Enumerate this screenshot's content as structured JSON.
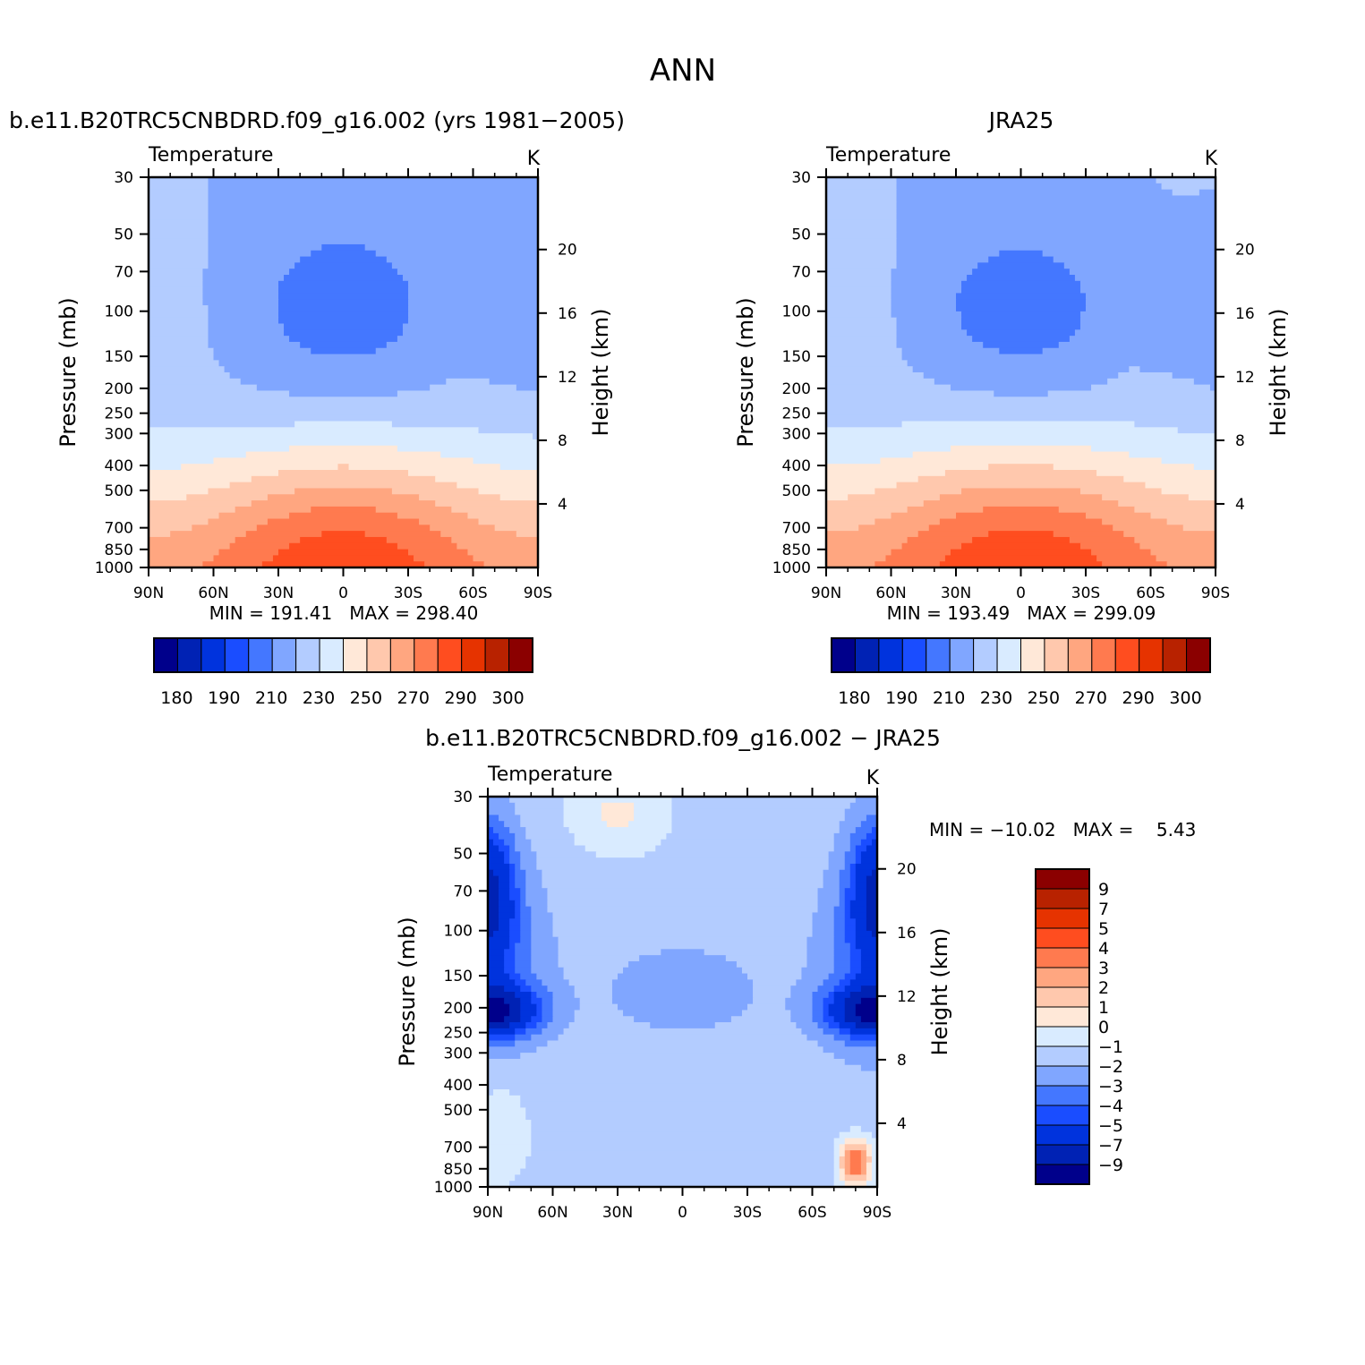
{
  "figure_title": "ANN",
  "level_colors": [
    "#00008b",
    "#0022b4",
    "#0033dd",
    "#1a4dff",
    "#4477ff",
    "#80a6ff",
    "#b3ccff",
    "#d9ebff",
    "#ffe8d8",
    "#ffc8ad",
    "#ffa680",
    "#ff7a4f",
    "#ff4d1f",
    "#e63300",
    "#b82200",
    "#8b0000"
  ],
  "chart_data": [
    {
      "id": "model",
      "type": "contour",
      "panel_title": "b.e11.B20TRC5CNBDRD.f09_g16.002 (yrs 1981−2005)",
      "left_label": "Temperature",
      "right_label": "K",
      "xlabel": "",
      "ylabel": "Pressure (mb)",
      "ylabel_right": "Height (km)",
      "x_ticks": [
        "90N",
        "60N",
        "30N",
        "0",
        "30S",
        "60S",
        "90S"
      ],
      "x_values": [
        90,
        60,
        30,
        0,
        -30,
        -60,
        -90
      ],
      "xlim": [
        90,
        -90
      ],
      "y_ticks": [
        30,
        50,
        70,
        100,
        150,
        200,
        250,
        300,
        400,
        500,
        700,
        850,
        1000
      ],
      "ylim": [
        30,
        1000
      ],
      "yscale": "log",
      "y_right_ticks": [
        20,
        16,
        12,
        8,
        4
      ],
      "stats": "MIN = 191.41   MAX = 298.40",
      "min": 191.41,
      "max": 298.4,
      "colorbar": {
        "orientation": "horizontal",
        "levels": [
          180,
          185,
          190,
          200,
          210,
          220,
          230,
          240,
          250,
          260,
          270,
          280,
          290,
          295,
          300
        ],
        "labels": [
          "180",
          "190",
          "210",
          "230",
          "250",
          "270",
          "290",
          "300"
        ]
      }
    },
    {
      "id": "obs",
      "type": "contour",
      "panel_title": "JRA25",
      "left_label": "Temperature",
      "right_label": "K",
      "xlabel": "",
      "ylabel": "Pressure (mb)",
      "ylabel_right": "Height (km)",
      "x_ticks": [
        "90N",
        "60N",
        "30N",
        "0",
        "30S",
        "60S",
        "90S"
      ],
      "x_values": [
        90,
        60,
        30,
        0,
        -30,
        -60,
        -90
      ],
      "xlim": [
        90,
        -90
      ],
      "y_ticks": [
        30,
        50,
        70,
        100,
        150,
        200,
        250,
        300,
        400,
        500,
        700,
        850,
        1000
      ],
      "ylim": [
        30,
        1000
      ],
      "yscale": "log",
      "y_right_ticks": [
        20,
        16,
        12,
        8,
        4
      ],
      "stats": "MIN = 193.49   MAX = 299.09",
      "min": 193.49,
      "max": 299.09,
      "colorbar": {
        "orientation": "horizontal",
        "levels": [
          180,
          185,
          190,
          200,
          210,
          220,
          230,
          240,
          250,
          260,
          270,
          280,
          290,
          295,
          300
        ],
        "labels": [
          "180",
          "190",
          "210",
          "230",
          "250",
          "270",
          "290",
          "300"
        ]
      }
    },
    {
      "id": "diff",
      "type": "contour",
      "panel_title": "b.e11.B20TRC5CNBDRD.f09_g16.002 − JRA25",
      "left_label": "Temperature",
      "right_label": "K",
      "xlabel": "",
      "ylabel": "Pressure (mb)",
      "ylabel_right": "Height (km)",
      "x_ticks": [
        "90N",
        "60N",
        "30N",
        "0",
        "30S",
        "60S",
        "90S"
      ],
      "x_values": [
        90,
        60,
        30,
        0,
        -30,
        -60,
        -90
      ],
      "xlim": [
        90,
        -90
      ],
      "y_ticks": [
        30,
        50,
        70,
        100,
        150,
        200,
        250,
        300,
        400,
        500,
        700,
        850,
        1000
      ],
      "ylim": [
        30,
        1000
      ],
      "yscale": "log",
      "y_right_ticks": [
        20,
        16,
        12,
        8,
        4
      ],
      "stats": "MIN = −10.02   MAX =    5.43",
      "min": -10.02,
      "max": 5.43,
      "colorbar": {
        "orientation": "vertical",
        "levels": [
          -9,
          -7,
          -5,
          -4,
          -3,
          -2,
          -1,
          0,
          1,
          2,
          3,
          4,
          5,
          7,
          9
        ],
        "labels": [
          "9",
          "7",
          "5",
          "4",
          "3",
          "2",
          "1",
          "0",
          "−1",
          "−2",
          "−3",
          "−4",
          "−5",
          "−7",
          "−9"
        ]
      }
    }
  ]
}
